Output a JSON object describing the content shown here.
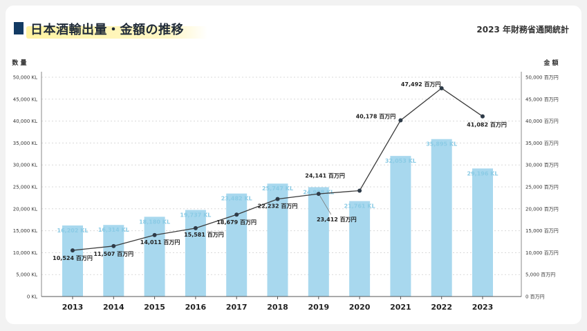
{
  "header": {
    "title": "日本酒輸出量・金額の推移",
    "source": "2023 年財務省通関統計"
  },
  "colors": {
    "bar": "#a8d8ee",
    "bar_label": "#8bcbe5",
    "line": "#3a3a3a",
    "title_mark": "#123a63",
    "grid": "#d8d8d8"
  },
  "chart_data": {
    "type": "bar",
    "categories": [
      "2013",
      "2014",
      "2015",
      "2016",
      "2017",
      "2018",
      "2019",
      "2020",
      "2021",
      "2022",
      "2023"
    ],
    "left_axis": {
      "label": "数 量",
      "range": [
        0,
        50000
      ],
      "ticks": [
        {
          "value": 0,
          "label": "0 KL"
        },
        {
          "value": 5000,
          "label": "5,000 KL"
        },
        {
          "value": 10000,
          "label": "10,000 KL"
        },
        {
          "value": 15000,
          "label": "15,000 KL"
        },
        {
          "value": 20000,
          "label": "20,000 KL"
        },
        {
          "value": 25000,
          "label": "25,000 KL"
        },
        {
          "value": 30000,
          "label": "30,000 KL"
        },
        {
          "value": 35000,
          "label": "35,000 KL"
        },
        {
          "value": 40000,
          "label": "40,000 KL"
        },
        {
          "value": 45000,
          "label": "45,000 KL"
        },
        {
          "value": 50000,
          "label": "50,000 KL"
        }
      ]
    },
    "right_axis": {
      "label": "金 額",
      "range": [
        0,
        50000
      ],
      "ticks": [
        {
          "value": 0,
          "label": "0 百万円"
        },
        {
          "value": 5000,
          "label": "5,000 百万円"
        },
        {
          "value": 10000,
          "label": "10,000 百万円"
        },
        {
          "value": 15000,
          "label": "15,000 百万円"
        },
        {
          "value": 20000,
          "label": "20,000 百万円"
        },
        {
          "value": 25000,
          "label": "25,000 百万円"
        },
        {
          "value": 30000,
          "label": "30,000 百万円"
        },
        {
          "value": 35000,
          "label": "35,000 百万円"
        },
        {
          "value": 40000,
          "label": "40,000 百万円"
        },
        {
          "value": 45000,
          "label": "45,000 百万円"
        },
        {
          "value": 50000,
          "label": "50,000 百万円"
        }
      ]
    },
    "grid": true,
    "series": [
      {
        "type": "bar",
        "axis": "left",
        "values": [
          16202,
          16314,
          18180,
          19737,
          23482,
          25747,
          24928,
          21761,
          32053,
          35895,
          29196
        ],
        "labels": [
          "16,202 KL",
          "16,314 KL",
          "18,180 KL",
          "19,737 KL",
          "23,482 KL",
          "25,747 KL",
          "24,928 KL",
          "21,761 KL",
          "32,053 KL",
          "35,895 KL",
          "29,196 KL"
        ]
      },
      {
        "type": "line",
        "axis": "right",
        "values": [
          10524,
          11507,
          14011,
          15581,
          18679,
          22232,
          23412,
          24141,
          40178,
          47492,
          41082
        ],
        "labels": [
          "10,524 百万円",
          "11,507 百万円",
          "14,011 百万円",
          "15,581 百万円",
          "18,679 百万円",
          "22,232 百万円",
          "23,412 百万円",
          "24,141 百万円",
          "40,178 百万円",
          "47,492 百万円",
          "41,082 百万円"
        ]
      }
    ]
  }
}
